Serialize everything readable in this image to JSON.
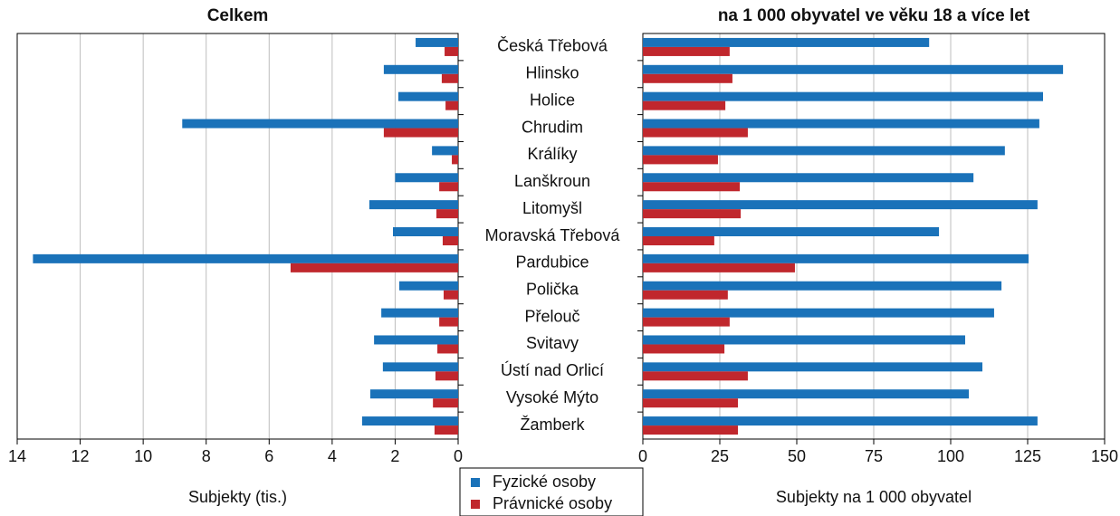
{
  "chart_data": [
    {
      "type": "bar",
      "horizontal": true,
      "title": "Celkem",
      "xlabel": "Subjekty (tis.)",
      "categories": [
        "Česká Třebová",
        "Hlinsko",
        "Holice",
        "Chrudim",
        "Králíky",
        "Lanškroun",
        "Litomyšl",
        "Moravská Třebová",
        "Pardubice",
        "Polička",
        "Přelouč",
        "Svitavy",
        "Ústí nad Orlicí",
        "Vysoké Mýto",
        "Žamberk"
      ],
      "series": [
        {
          "name": "Fyzické osoby",
          "color": "#1a72b9",
          "values": [
            1.35,
            2.36,
            1.9,
            8.76,
            0.83,
            2.0,
            2.82,
            2.07,
            13.5,
            1.87,
            2.44,
            2.67,
            2.39,
            2.79,
            3.05
          ]
        },
        {
          "name": "Právnické osoby",
          "color": "#c0272d",
          "values": [
            0.43,
            0.52,
            0.4,
            2.36,
            0.2,
            0.6,
            0.69,
            0.49,
            5.32,
            0.46,
            0.6,
            0.66,
            0.72,
            0.8,
            0.75
          ]
        }
      ],
      "xlim": [
        14,
        0
      ],
      "xticks": [
        14,
        12,
        10,
        8,
        6,
        4,
        2,
        0
      ],
      "grid": true
    },
    {
      "type": "bar",
      "horizontal": true,
      "title": "na 1 000 obyvatel ve věku 18 a více let",
      "xlabel": "Subjekty na 1 000 obyvatel",
      "series": [
        {
          "color": "#1a72b9",
          "values": [
            93,
            136.5,
            130,
            128.8,
            117.6,
            107.4,
            128.2,
            96.2,
            125.3,
            116.5,
            114.1,
            104.7,
            110.3,
            105.9,
            128.2
          ]
        },
        {
          "color": "#c0272d",
          "values": [
            28.2,
            29.1,
            26.8,
            34.1,
            24.4,
            31.5,
            31.8,
            23.2,
            49.4,
            27.6,
            28.2,
            26.5,
            34.1,
            30.9,
            30.9
          ]
        }
      ],
      "xlim": [
        0,
        150
      ],
      "xticks": [
        0,
        25,
        50,
        75,
        100,
        125,
        150
      ],
      "grid": true
    }
  ]
}
